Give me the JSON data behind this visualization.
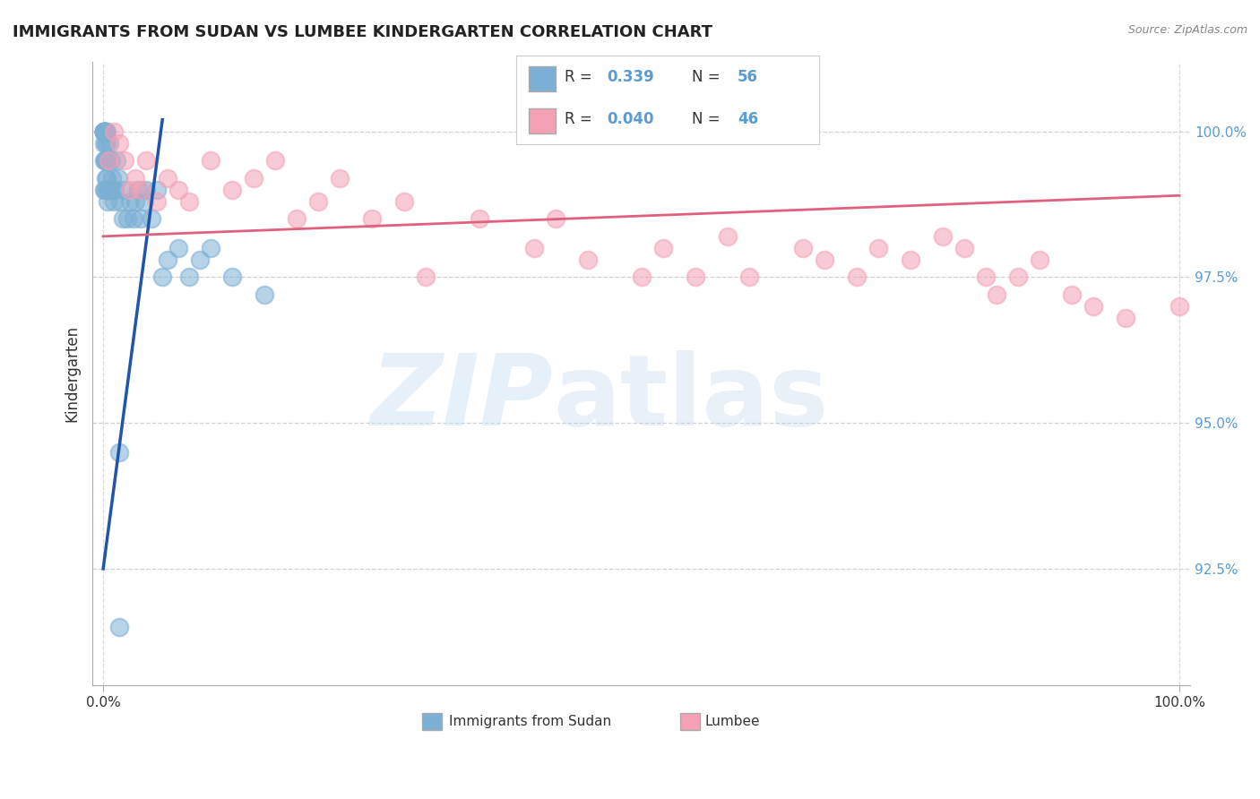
{
  "title": "IMMIGRANTS FROM SUDAN VS LUMBEE KINDERGARTEN CORRELATION CHART",
  "source": "Source: ZipAtlas.com",
  "ylabel": "Kindergarten",
  "blue_r": "0.339",
  "blue_n": "56",
  "pink_r": "0.040",
  "pink_n": "46",
  "blue_color": "#7bafd4",
  "pink_color": "#f4a0b5",
  "blue_line_color": "#2255aa",
  "pink_line_color": "#e06080",
  "legend_label_blue": "Immigrants from Sudan",
  "legend_label_pink": "Lumbee",
  "blue_scatter_x": [
    0.05,
    0.05,
    0.05,
    0.05,
    0.05,
    0.1,
    0.1,
    0.1,
    0.1,
    0.1,
    0.15,
    0.15,
    0.15,
    0.2,
    0.2,
    0.2,
    0.25,
    0.25,
    0.3,
    0.3,
    0.35,
    0.35,
    0.4,
    0.4,
    0.5,
    0.5,
    0.6,
    0.6,
    0.7,
    0.8,
    0.9,
    1.0,
    1.1,
    1.2,
    1.4,
    1.6,
    1.8,
    2.0,
    2.2,
    2.5,
    2.8,
    3.0,
    3.2,
    3.5,
    3.8,
    4.0,
    4.5,
    5.0,
    5.5,
    6.0,
    7.0,
    8.0,
    9.0,
    10.0,
    12.0,
    15.0
  ],
  "blue_scatter_y": [
    100.0,
    100.0,
    100.0,
    100.0,
    99.8,
    100.0,
    100.0,
    100.0,
    99.5,
    99.0,
    100.0,
    99.5,
    99.0,
    100.0,
    99.8,
    99.2,
    100.0,
    99.5,
    100.0,
    99.0,
    99.8,
    99.2,
    99.5,
    98.8,
    99.5,
    99.0,
    99.8,
    99.0,
    99.5,
    99.2,
    99.0,
    98.8,
    99.0,
    99.5,
    99.2,
    98.8,
    98.5,
    99.0,
    98.5,
    98.8,
    98.5,
    98.8,
    99.0,
    98.5,
    98.8,
    99.0,
    98.5,
    99.0,
    97.5,
    97.8,
    98.0,
    97.5,
    97.8,
    98.0,
    97.5,
    97.2
  ],
  "pink_scatter_x": [
    0.5,
    1.0,
    1.5,
    2.0,
    2.5,
    3.0,
    3.5,
    4.0,
    5.0,
    6.0,
    7.0,
    8.0,
    10.0,
    12.0,
    14.0,
    16.0,
    18.0,
    20.0,
    22.0,
    25.0,
    28.0,
    30.0,
    35.0,
    40.0,
    42.0,
    45.0,
    50.0,
    52.0,
    55.0,
    58.0,
    60.0,
    65.0,
    67.0,
    70.0,
    72.0,
    75.0,
    78.0,
    80.0,
    82.0,
    83.0,
    85.0,
    87.0,
    90.0,
    92.0,
    95.0,
    100.0
  ],
  "pink_scatter_y": [
    99.5,
    100.0,
    99.8,
    99.5,
    99.0,
    99.2,
    99.0,
    99.5,
    98.8,
    99.2,
    99.0,
    98.8,
    99.5,
    99.0,
    99.2,
    99.5,
    98.5,
    98.8,
    99.2,
    98.5,
    98.8,
    97.5,
    98.5,
    98.0,
    98.5,
    97.8,
    97.5,
    98.0,
    97.5,
    98.2,
    97.5,
    98.0,
    97.8,
    97.5,
    98.0,
    97.8,
    98.2,
    98.0,
    97.5,
    97.2,
    97.5,
    97.8,
    97.2,
    97.0,
    96.8,
    97.0
  ],
  "xlim": [
    -1.0,
    101.0
  ],
  "ylim": [
    90.5,
    101.2
  ],
  "yticks": [
    100.0,
    97.5,
    95.0,
    92.5
  ],
  "ytick_labels": [
    "100.0%",
    "97.5%",
    "95.0%",
    "92.5%"
  ],
  "blue_line_x": [
    0.0,
    5.5
  ],
  "blue_line_y_start": 92.5,
  "blue_line_y_end": 100.2,
  "pink_line_x": [
    0.0,
    100.0
  ],
  "pink_line_y_start": 98.2,
  "pink_line_y_end": 98.9,
  "lone_blue_x": 1.5,
  "lone_blue_y": 94.5,
  "lone_blue2_x": 1.5,
  "lone_blue2_y": 91.5,
  "grid_color": "#cccccc",
  "background_color": "#ffffff"
}
